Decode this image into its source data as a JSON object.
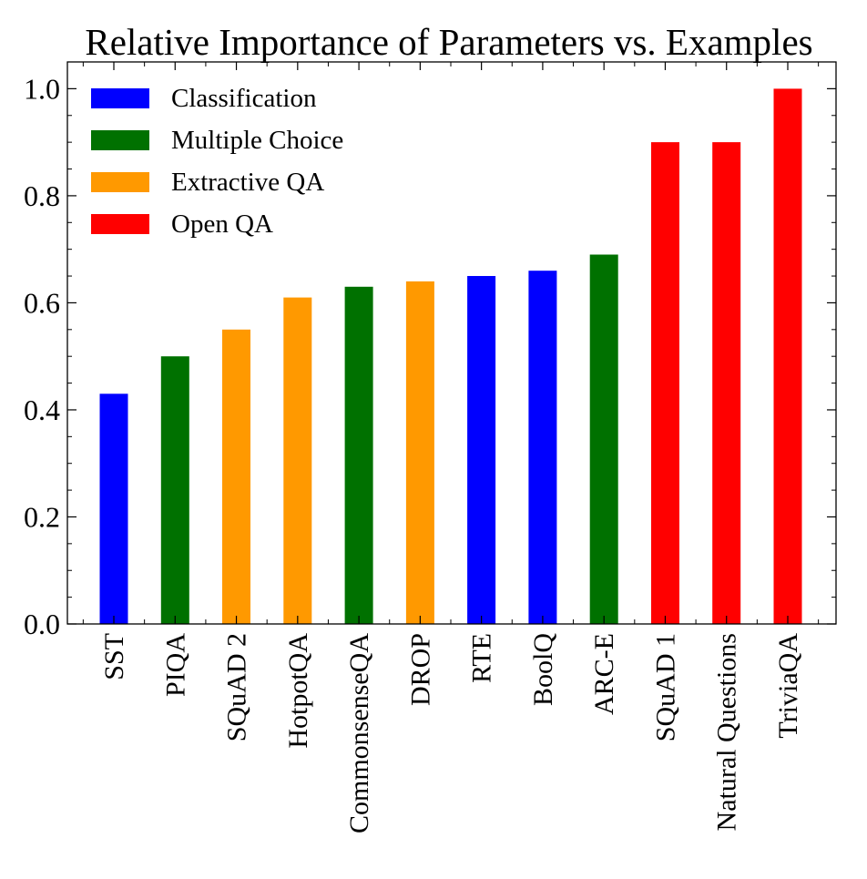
{
  "chart_data": {
    "type": "bar",
    "title": "Relative Importance of Parameters vs. Examples",
    "xlabel": "",
    "ylabel": "",
    "ylim": [
      0,
      1.05
    ],
    "yticks": [
      "0.0",
      "0.2",
      "0.4",
      "0.6",
      "0.8",
      "1.0"
    ],
    "grid": false,
    "legend_position": "top-left",
    "legend": [
      {
        "name": "Classification",
        "color": "#0000ff"
      },
      {
        "name": "Multiple Choice",
        "color": "#007100"
      },
      {
        "name": "Extractive QA",
        "color": "#ff9900"
      },
      {
        "name": "Open QA",
        "color": "#ff0000"
      }
    ],
    "categories": [
      "SST",
      "PIQA",
      "SQuAD 2",
      "HotpotQA",
      "CommonsenseQA",
      "DROP",
      "RTE",
      "BoolQ",
      "ARC-E",
      "SQuAD 1",
      "Natural Questions",
      "TriviaQA"
    ],
    "values": [
      0.43,
      0.5,
      0.55,
      0.61,
      0.63,
      0.64,
      0.65,
      0.66,
      0.69,
      0.9,
      0.9,
      1.0
    ],
    "groups": [
      "Classification",
      "Multiple Choice",
      "Extractive QA",
      "Extractive QA",
      "Multiple Choice",
      "Extractive QA",
      "Classification",
      "Classification",
      "Multiple Choice",
      "Open QA",
      "Open QA",
      "Open QA"
    ]
  }
}
